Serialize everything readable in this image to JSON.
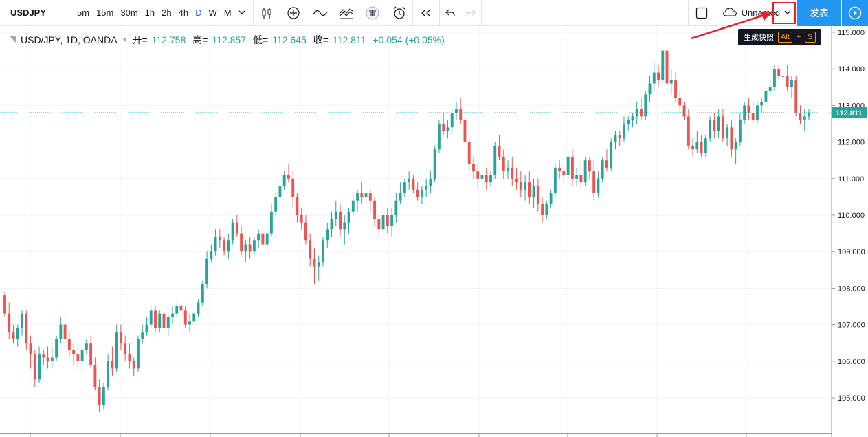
{
  "toolbar": {
    "symbol": "USDJPY",
    "intervals": [
      "5m",
      "15m",
      "30m",
      "1h",
      "2h",
      "4h",
      "D",
      "W",
      "M"
    ],
    "active_interval": "D",
    "layout_name": "Unnamed",
    "publish_label": "发表"
  },
  "tooltip": {
    "text": "生成快照",
    "key1": "Alt",
    "plus": "+",
    "key2": "S"
  },
  "legend": {
    "title": "USD/JPY, 1D, OANDA",
    "open_label": "开=",
    "open": "112.758",
    "high_label": "高=",
    "high": "112.857",
    "low_label": "低=",
    "low": "112.645",
    "close_label": "收=",
    "close": "112.811",
    "change": "+0.054 (+0.05%)"
  },
  "colors": {
    "up": "#26a69a",
    "down": "#ef5350",
    "accent": "#2196f3",
    "highlight": "#e3242b"
  },
  "chart_data": {
    "type": "candlestick",
    "y_ticks": [
      "115.000",
      "114.000",
      "113.000",
      "112.000",
      "111.000",
      "110.000",
      "109.000",
      "108.000",
      "107.000",
      "106.000",
      "105.000"
    ],
    "ylim": [
      104.5,
      115.2
    ],
    "last_price_label": "112.811",
    "candles": [
      [
        107.8,
        107.9,
        107.2,
        107.3
      ],
      [
        107.3,
        107.6,
        106.6,
        106.8
      ],
      [
        106.8,
        107.0,
        106.5,
        106.6
      ],
      [
        106.6,
        107.0,
        106.4,
        106.9
      ],
      [
        106.9,
        107.4,
        106.7,
        107.3
      ],
      [
        107.3,
        107.4,
        106.3,
        106.5
      ],
      [
        106.5,
        106.7,
        105.8,
        106.2
      ],
      [
        106.2,
        106.3,
        105.3,
        105.5
      ],
      [
        105.5,
        106.4,
        105.4,
        106.2
      ],
      [
        106.2,
        106.3,
        105.9,
        106.1
      ],
      [
        106.1,
        106.4,
        105.8,
        106.0
      ],
      [
        106.0,
        106.4,
        105.8,
        106.1
      ],
      [
        106.1,
        106.7,
        106.0,
        106.6
      ],
      [
        106.6,
        107.2,
        106.5,
        107.0
      ],
      [
        107.0,
        107.3,
        106.4,
        106.6
      ],
      [
        106.6,
        106.8,
        106.1,
        106.3
      ],
      [
        106.3,
        106.5,
        105.9,
        106.2
      ],
      [
        106.2,
        106.5,
        105.7,
        106.0
      ],
      [
        106.0,
        106.4,
        105.7,
        106.3
      ],
      [
        106.3,
        106.6,
        106.2,
        106.5
      ],
      [
        106.5,
        106.7,
        105.8,
        105.9
      ],
      [
        105.9,
        106.1,
        105.2,
        105.3
      ],
      [
        105.3,
        105.5,
        104.6,
        104.8
      ],
      [
        104.8,
        105.4,
        104.7,
        105.3
      ],
      [
        105.3,
        106.2,
        105.2,
        106.0
      ],
      [
        106.0,
        106.4,
        105.6,
        105.8
      ],
      [
        105.8,
        107.0,
        105.7,
        106.8
      ],
      [
        106.8,
        107.0,
        106.3,
        106.5
      ],
      [
        106.5,
        106.7,
        106.0,
        106.2
      ],
      [
        106.2,
        106.5,
        105.8,
        106.0
      ],
      [
        106.0,
        106.1,
        105.6,
        105.8
      ],
      [
        105.8,
        106.7,
        105.7,
        106.6
      ],
      [
        106.6,
        107.0,
        106.5,
        106.8
      ],
      [
        106.8,
        107.2,
        106.7,
        107.0
      ],
      [
        107.0,
        107.5,
        106.9,
        107.4
      ],
      [
        107.4,
        107.5,
        106.8,
        106.9
      ],
      [
        106.9,
        107.4,
        106.8,
        107.3
      ],
      [
        107.3,
        107.4,
        106.8,
        106.9
      ],
      [
        106.9,
        107.3,
        106.7,
        107.2
      ],
      [
        107.2,
        107.5,
        107.0,
        107.3
      ],
      [
        107.3,
        107.6,
        107.2,
        107.5
      ],
      [
        107.5,
        107.7,
        107.2,
        107.4
      ],
      [
        107.4,
        107.5,
        106.9,
        107.0
      ],
      [
        107.0,
        107.3,
        106.8,
        107.1
      ],
      [
        107.1,
        107.4,
        107.0,
        107.3
      ],
      [
        107.3,
        107.7,
        107.2,
        107.6
      ],
      [
        107.6,
        108.2,
        107.5,
        108.1
      ],
      [
        108.1,
        109.0,
        108.0,
        108.8
      ],
      [
        108.8,
        109.2,
        108.7,
        109.0
      ],
      [
        109.0,
        109.6,
        108.9,
        109.4
      ],
      [
        109.4,
        109.6,
        109.1,
        109.3
      ],
      [
        109.3,
        109.4,
        108.9,
        109.0
      ],
      [
        109.0,
        109.5,
        108.8,
        109.3
      ],
      [
        109.3,
        109.9,
        109.2,
        109.8
      ],
      [
        109.8,
        110.0,
        109.4,
        109.5
      ],
      [
        109.5,
        109.7,
        108.9,
        109.0
      ],
      [
        109.0,
        109.3,
        108.7,
        109.2
      ],
      [
        109.2,
        109.4,
        108.8,
        109.0
      ],
      [
        109.0,
        109.4,
        108.9,
        109.3
      ],
      [
        109.3,
        109.6,
        109.1,
        109.5
      ],
      [
        109.5,
        109.7,
        109.1,
        109.2
      ],
      [
        109.2,
        109.6,
        109.0,
        109.5
      ],
      [
        109.5,
        110.3,
        109.4,
        110.1
      ],
      [
        110.1,
        110.6,
        110.0,
        110.5
      ],
      [
        110.5,
        110.9,
        110.3,
        110.8
      ],
      [
        110.8,
        111.2,
        110.7,
        111.1
      ],
      [
        111.1,
        111.4,
        110.9,
        111.0
      ],
      [
        111.0,
        111.2,
        110.2,
        110.5
      ],
      [
        110.5,
        110.6,
        109.8,
        110.0
      ],
      [
        110.0,
        110.2,
        109.6,
        109.8
      ],
      [
        109.8,
        110.0,
        109.2,
        109.3
      ],
      [
        109.3,
        109.5,
        108.6,
        108.8
      ],
      [
        108.8,
        109.1,
        108.1,
        108.6
      ],
      [
        108.6,
        108.9,
        108.2,
        108.7
      ],
      [
        108.7,
        109.4,
        108.6,
        109.3
      ],
      [
        109.3,
        109.8,
        109.1,
        109.6
      ],
      [
        109.6,
        110.1,
        109.4,
        109.9
      ],
      [
        109.9,
        110.4,
        109.7,
        110.1
      ],
      [
        110.1,
        110.3,
        109.4,
        109.6
      ],
      [
        109.6,
        110.0,
        109.2,
        109.8
      ],
      [
        109.8,
        110.2,
        109.5,
        110.1
      ],
      [
        110.1,
        110.6,
        110.0,
        110.4
      ],
      [
        110.4,
        110.7,
        110.1,
        110.6
      ],
      [
        110.6,
        110.9,
        110.3,
        110.5
      ],
      [
        110.5,
        110.8,
        110.3,
        110.6
      ],
      [
        110.6,
        110.7,
        110.1,
        110.4
      ],
      [
        110.4,
        110.5,
        109.7,
        109.9
      ],
      [
        109.9,
        110.0,
        109.4,
        109.6
      ],
      [
        109.6,
        110.1,
        109.4,
        110.0
      ],
      [
        110.0,
        110.2,
        109.5,
        109.7
      ],
      [
        109.7,
        110.2,
        109.4,
        110.0
      ],
      [
        110.0,
        110.6,
        109.8,
        110.4
      ],
      [
        110.4,
        110.9,
        110.3,
        110.6
      ],
      [
        110.6,
        111.0,
        110.5,
        110.9
      ],
      [
        110.9,
        111.2,
        110.7,
        111.0
      ],
      [
        111.0,
        111.1,
        110.6,
        110.7
      ],
      [
        110.7,
        110.9,
        110.4,
        110.5
      ],
      [
        110.5,
        110.8,
        110.3,
        110.7
      ],
      [
        110.7,
        111.0,
        110.5,
        110.8
      ],
      [
        110.8,
        111.2,
        110.6,
        111.0
      ],
      [
        111.0,
        111.9,
        110.9,
        111.8
      ],
      [
        111.8,
        112.6,
        111.7,
        112.5
      ],
      [
        112.5,
        112.8,
        112.2,
        112.3
      ],
      [
        112.3,
        112.6,
        112.1,
        112.4
      ],
      [
        112.4,
        112.9,
        112.2,
        112.8
      ],
      [
        112.8,
        113.1,
        112.6,
        112.9
      ],
      [
        112.9,
        113.2,
        112.5,
        112.6
      ],
      [
        112.6,
        112.7,
        111.8,
        112.0
      ],
      [
        112.0,
        112.1,
        111.2,
        111.4
      ],
      [
        111.4,
        111.6,
        111.0,
        111.2
      ],
      [
        111.2,
        111.4,
        110.7,
        111.0
      ],
      [
        111.0,
        111.3,
        110.6,
        111.1
      ],
      [
        111.1,
        111.3,
        110.7,
        110.9
      ],
      [
        110.9,
        111.2,
        110.8,
        111.1
      ],
      [
        111.1,
        112.0,
        111.0,
        111.9
      ],
      [
        111.9,
        112.2,
        111.5,
        111.6
      ],
      [
        111.6,
        111.8,
        111.0,
        111.2
      ],
      [
        111.2,
        111.5,
        111.0,
        111.3
      ],
      [
        111.3,
        111.6,
        110.8,
        111.0
      ],
      [
        111.0,
        111.3,
        110.7,
        110.9
      ],
      [
        110.9,
        111.2,
        110.5,
        110.7
      ],
      [
        110.7,
        111.1,
        110.4,
        110.9
      ],
      [
        110.9,
        111.2,
        110.3,
        110.5
      ],
      [
        110.5,
        111.0,
        110.2,
        110.8
      ],
      [
        110.8,
        111.0,
        110.1,
        110.3
      ],
      [
        110.3,
        110.5,
        109.8,
        110.0
      ],
      [
        110.0,
        110.4,
        109.9,
        110.3
      ],
      [
        110.3,
        110.7,
        110.2,
        110.6
      ],
      [
        110.6,
        111.4,
        110.5,
        111.3
      ],
      [
        111.3,
        111.5,
        111.0,
        111.2
      ],
      [
        111.2,
        111.4,
        110.9,
        111.1
      ],
      [
        111.1,
        111.7,
        111.0,
        111.6
      ],
      [
        111.6,
        111.8,
        110.8,
        111.0
      ],
      [
        111.0,
        111.3,
        110.8,
        111.1
      ],
      [
        111.1,
        111.5,
        110.7,
        110.9
      ],
      [
        110.9,
        111.6,
        110.8,
        111.5
      ],
      [
        111.5,
        111.6,
        111.0,
        111.2
      ],
      [
        111.2,
        111.5,
        110.4,
        110.6
      ],
      [
        110.6,
        111.2,
        110.5,
        111.0
      ],
      [
        111.0,
        111.6,
        110.9,
        111.5
      ],
      [
        111.5,
        111.8,
        111.2,
        111.3
      ],
      [
        111.3,
        112.1,
        111.2,
        112.0
      ],
      [
        112.0,
        112.3,
        111.8,
        112.2
      ],
      [
        112.2,
        112.3,
        111.9,
        112.1
      ],
      [
        112.1,
        112.7,
        112.0,
        112.5
      ],
      [
        112.5,
        112.7,
        112.3,
        112.6
      ],
      [
        112.6,
        112.8,
        112.4,
        112.7
      ],
      [
        112.7,
        113.1,
        112.5,
        112.9
      ],
      [
        112.9,
        113.2,
        112.6,
        112.7
      ],
      [
        112.7,
        113.4,
        112.6,
        113.3
      ],
      [
        113.3,
        113.8,
        113.1,
        113.6
      ],
      [
        113.6,
        114.2,
        113.4,
        113.9
      ],
      [
        113.9,
        114.1,
        113.5,
        113.7
      ],
      [
        113.7,
        114.5,
        113.6,
        114.5
      ],
      [
        114.5,
        114.5,
        113.4,
        113.6
      ],
      [
        113.6,
        114.0,
        113.3,
        113.7
      ],
      [
        113.7,
        113.9,
        113.1,
        113.2
      ],
      [
        113.2,
        113.4,
        112.8,
        113.0
      ],
      [
        113.0,
        113.1,
        112.6,
        112.7
      ],
      [
        112.7,
        112.9,
        111.8,
        111.9
      ],
      [
        111.9,
        112.1,
        111.6,
        111.8
      ],
      [
        111.8,
        112.3,
        111.7,
        112.0
      ],
      [
        112.0,
        112.2,
        111.6,
        111.7
      ],
      [
        111.7,
        112.2,
        111.6,
        112.1
      ],
      [
        112.1,
        112.7,
        112.0,
        112.6
      ],
      [
        112.6,
        112.8,
        112.1,
        112.3
      ],
      [
        112.3,
        112.9,
        112.1,
        112.7
      ],
      [
        112.7,
        112.9,
        112.0,
        112.1
      ],
      [
        112.1,
        112.5,
        111.9,
        112.4
      ],
      [
        112.4,
        112.6,
        111.6,
        111.8
      ],
      [
        111.8,
        112.1,
        111.4,
        112.0
      ],
      [
        112.0,
        112.8,
        111.9,
        112.6
      ],
      [
        112.6,
        113.1,
        112.5,
        113.0
      ],
      [
        113.0,
        113.2,
        112.6,
        112.8
      ],
      [
        112.8,
        113.1,
        112.5,
        112.6
      ],
      [
        112.6,
        113.1,
        112.5,
        113.0
      ],
      [
        113.0,
        113.2,
        112.8,
        113.1
      ],
      [
        113.1,
        113.5,
        113.0,
        113.4
      ],
      [
        113.4,
        113.7,
        113.3,
        113.5
      ],
      [
        113.5,
        114.1,
        113.4,
        114.0
      ],
      [
        114.0,
        114.1,
        113.7,
        113.8
      ],
      [
        113.8,
        114.2,
        113.6,
        113.8
      ],
      [
        113.8,
        114.1,
        113.4,
        113.5
      ],
      [
        113.5,
        113.8,
        113.2,
        113.7
      ],
      [
        113.7,
        113.8,
        112.7,
        112.8
      ],
      [
        112.8,
        113.0,
        112.5,
        112.6
      ],
      [
        112.6,
        112.9,
        112.3,
        112.7
      ],
      [
        112.7,
        112.9,
        112.6,
        112.8
      ]
    ]
  }
}
